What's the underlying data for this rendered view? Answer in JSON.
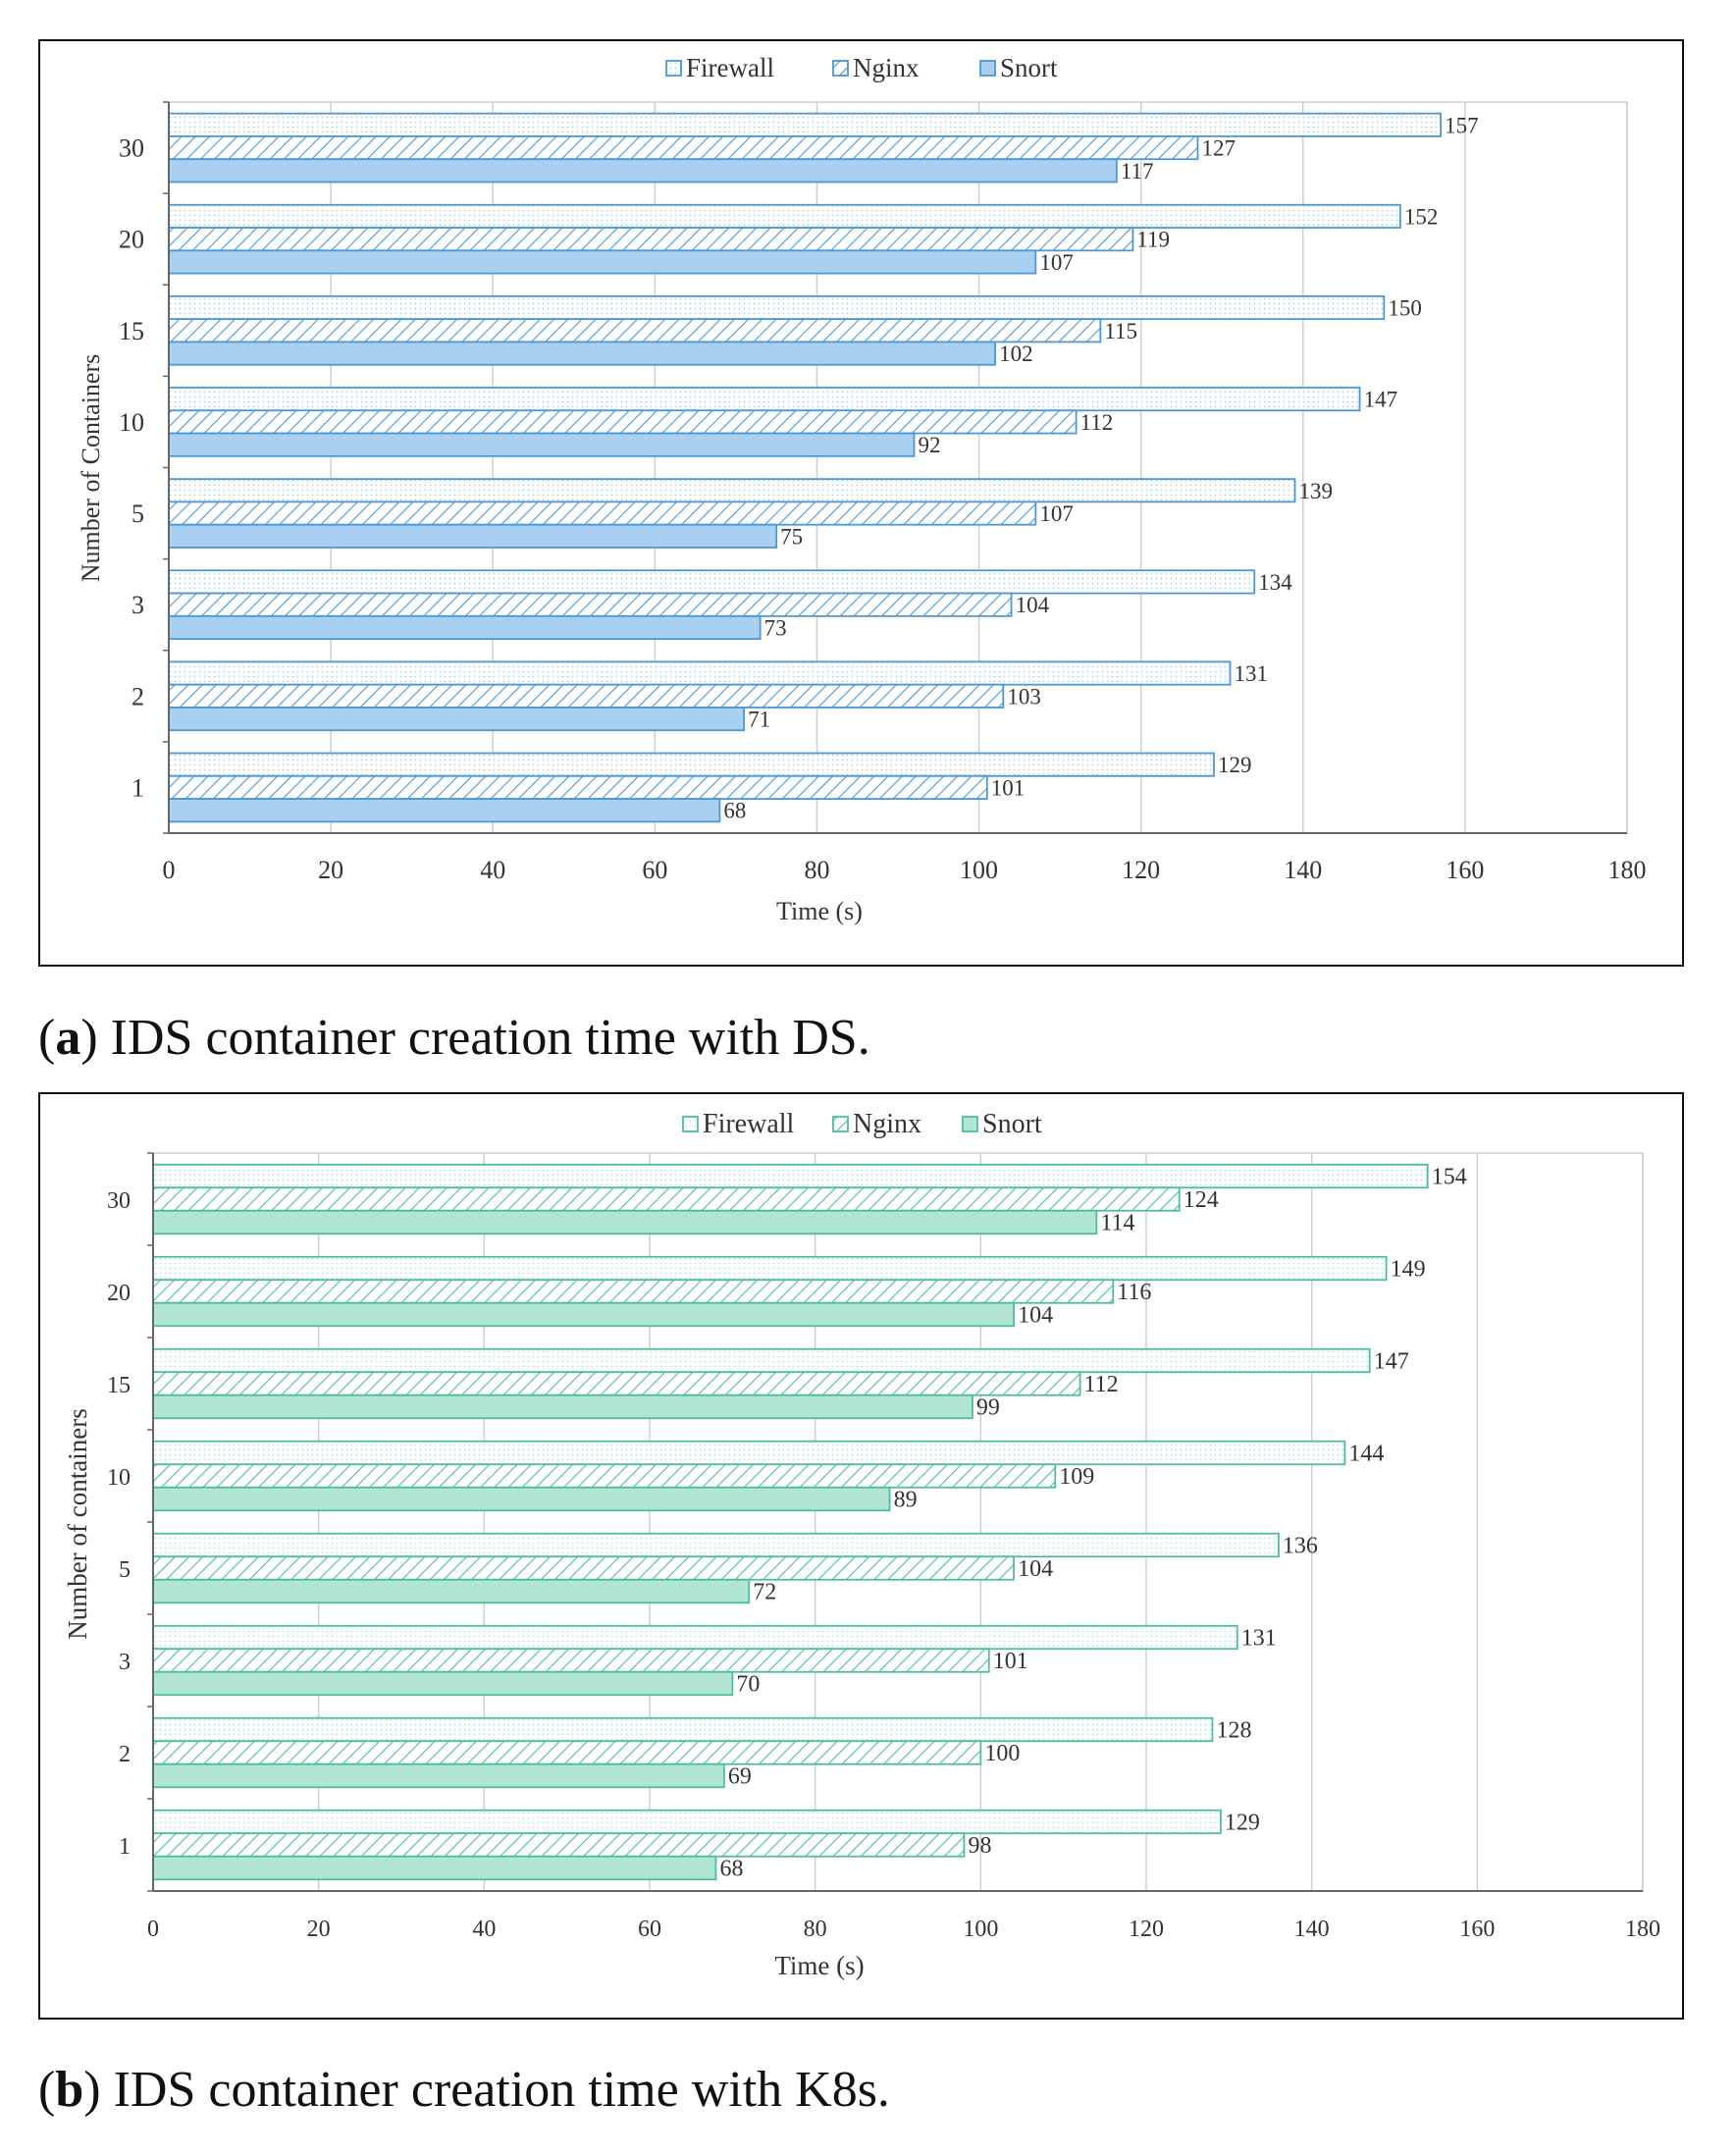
{
  "colors": {
    "a_fill": "#a9d0f1",
    "a_stroke": "#4a98d6",
    "b_fill": "#b0e6d2",
    "b_stroke": "#4dbf98",
    "grid": "#cfcfcf",
    "axis": "#666666"
  },
  "captions": {
    "a_letter": "a",
    "a_text": "IDS container creation time with DS.",
    "b_letter": "b",
    "b_text": "IDS container creation time with K8s."
  },
  "chart_data": [
    {
      "type": "bar",
      "orientation": "horizontal",
      "title": "",
      "xlabel": "Time (s)",
      "ylabel": "Number of Containers",
      "xlim": [
        0,
        180
      ],
      "xticks": [
        "0",
        "20",
        "40",
        "60",
        "80",
        "100",
        "120",
        "140",
        "160",
        "180"
      ],
      "grid": true,
      "legend_position": "top",
      "categories": [
        "30",
        "20",
        "15",
        "10",
        "5",
        "3",
        "2",
        "1"
      ],
      "series": [
        {
          "name": "Firewall",
          "style": "dotted",
          "values": [
            157,
            152,
            150,
            147,
            139,
            134,
            131,
            129
          ]
        },
        {
          "name": "Nginx",
          "style": "hatched",
          "values": [
            127,
            119,
            115,
            112,
            107,
            104,
            103,
            101
          ]
        },
        {
          "name": "Snort",
          "style": "solid",
          "values": [
            117,
            107,
            102,
            92,
            75,
            73,
            71,
            68
          ]
        }
      ]
    },
    {
      "type": "bar",
      "orientation": "horizontal",
      "title": "",
      "xlabel": "Time (s)",
      "ylabel": "Number of containers",
      "xlim": [
        0,
        180
      ],
      "xticks": [
        "0",
        "20",
        "40",
        "60",
        "80",
        "100",
        "120",
        "140",
        "160",
        "180"
      ],
      "grid": true,
      "legend_position": "top",
      "categories": [
        "30",
        "20",
        "15",
        "10",
        "5",
        "3",
        "2",
        "1"
      ],
      "series": [
        {
          "name": "Firewall",
          "style": "dotted",
          "values": [
            154,
            149,
            147,
            144,
            136,
            131,
            128,
            129
          ]
        },
        {
          "name": "Nginx",
          "style": "hatched",
          "values": [
            124,
            116,
            112,
            109,
            104,
            101,
            100,
            98
          ]
        },
        {
          "name": "Snort",
          "style": "solid",
          "values": [
            114,
            104,
            99,
            89,
            72,
            70,
            69,
            68
          ]
        }
      ]
    }
  ]
}
